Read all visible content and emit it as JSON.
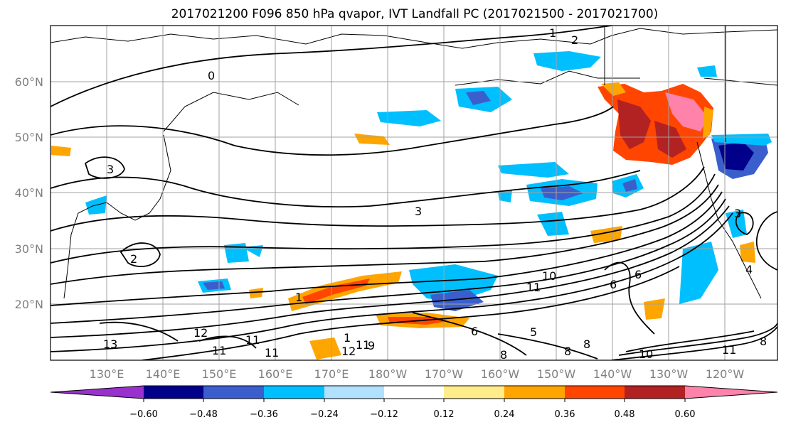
{
  "title": "2017021200 F096 850 hPa qvapor, IVT Landfall PC (2017021500 - 2017021700)",
  "lat_labels": [
    "60°N",
    "50°N",
    "40°N",
    "30°N",
    "20°N"
  ],
  "lon_labels": [
    "130°E",
    "140°E",
    "150°E",
    "160°E",
    "170°E",
    "180°W",
    "170°W",
    "160°W",
    "150°W",
    "140°W",
    "130°W",
    "120°W"
  ],
  "colorbar": {
    "colors": [
      "#9932cc",
      "#00008b",
      "#3a5fcd",
      "#00bfff",
      "#b0e2ff",
      "#ffffff",
      "#ffec8b",
      "#ffa500",
      "#ff4500",
      "#b22222",
      "#ff82ab"
    ],
    "tick_labels": [
      "−0.60",
      "−0.48",
      "−0.36",
      "−0.24",
      "−0.12",
      "0.12",
      "0.24",
      "0.36",
      "0.48",
      "0.60"
    ]
  },
  "contour_labels": [
    "0",
    "2",
    "1",
    "3",
    "3",
    "2",
    "13",
    "12",
    "11",
    "11",
    "11",
    "12",
    "11",
    "1",
    "9",
    "1",
    "10",
    "11",
    "8",
    "8",
    "6",
    "6",
    "5",
    "8",
    "10",
    "11",
    "6",
    "4",
    "3",
    "8"
  ]
}
